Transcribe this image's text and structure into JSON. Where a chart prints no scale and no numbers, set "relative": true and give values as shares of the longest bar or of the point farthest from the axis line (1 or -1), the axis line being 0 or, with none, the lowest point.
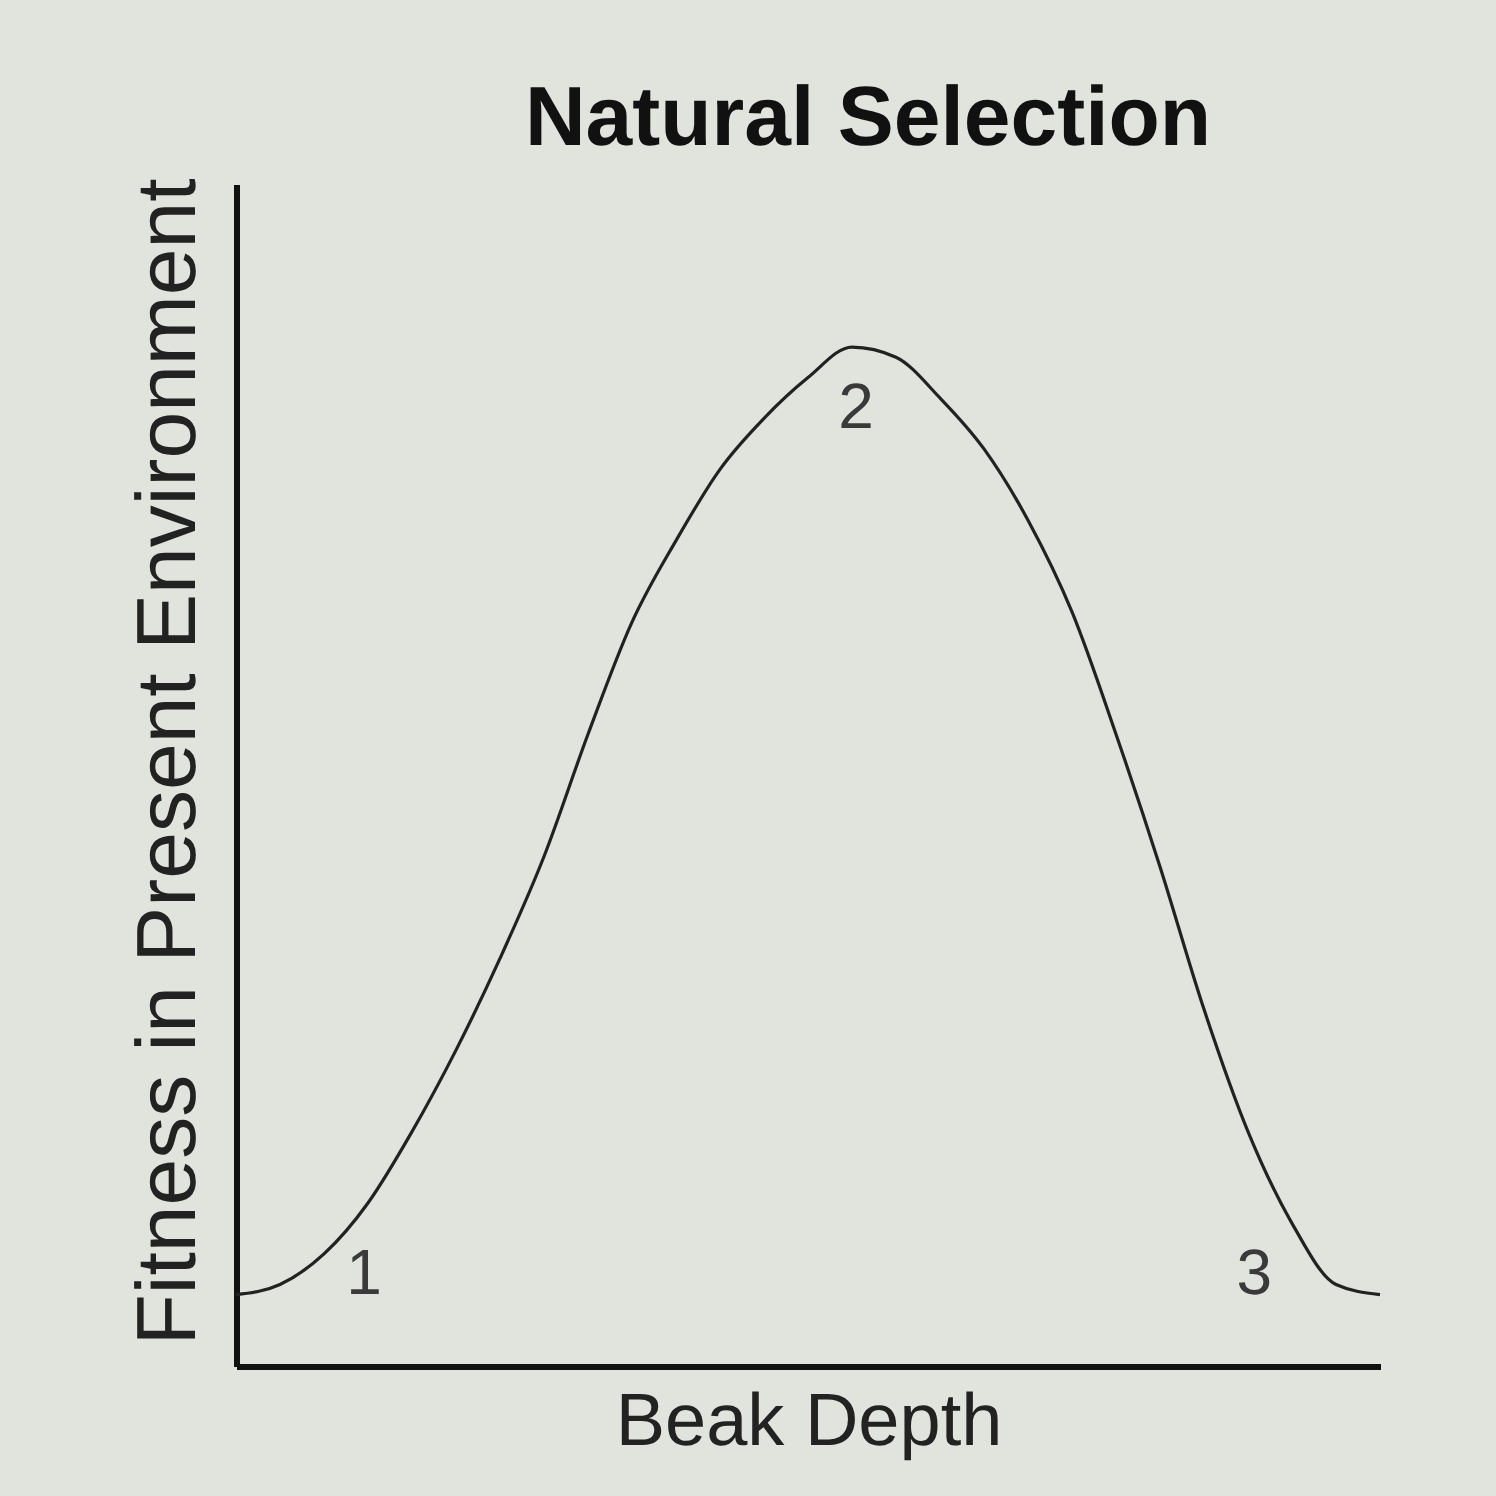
{
  "chart_data": {
    "type": "line",
    "title": "Natural Selection",
    "xlabel": "Beak Depth",
    "ylabel": "Fitness in Present Environment",
    "categories": [
      null,
      null,
      null,
      null,
      null,
      null,
      null,
      null,
      null,
      null,
      null,
      null,
      null,
      null,
      null,
      null,
      null,
      null,
      null,
      null,
      null,
      null,
      null,
      null,
      null,
      null,
      null
    ],
    "values": [
      0.07,
      0.08,
      0.11,
      0.16,
      0.23,
      0.31,
      0.4,
      0.5,
      0.62,
      0.73,
      0.81,
      0.88,
      0.93,
      0.97,
      1,
      0.99,
      0.95,
      0.9,
      0.83,
      0.74,
      0.62,
      0.49,
      0.35,
      0.23,
      0.14,
      0.08,
      0.07
    ],
    "color": "#222222",
    "relative": true,
    "annotations": [
      "1",
      "2",
      "3"
    ]
  }
}
